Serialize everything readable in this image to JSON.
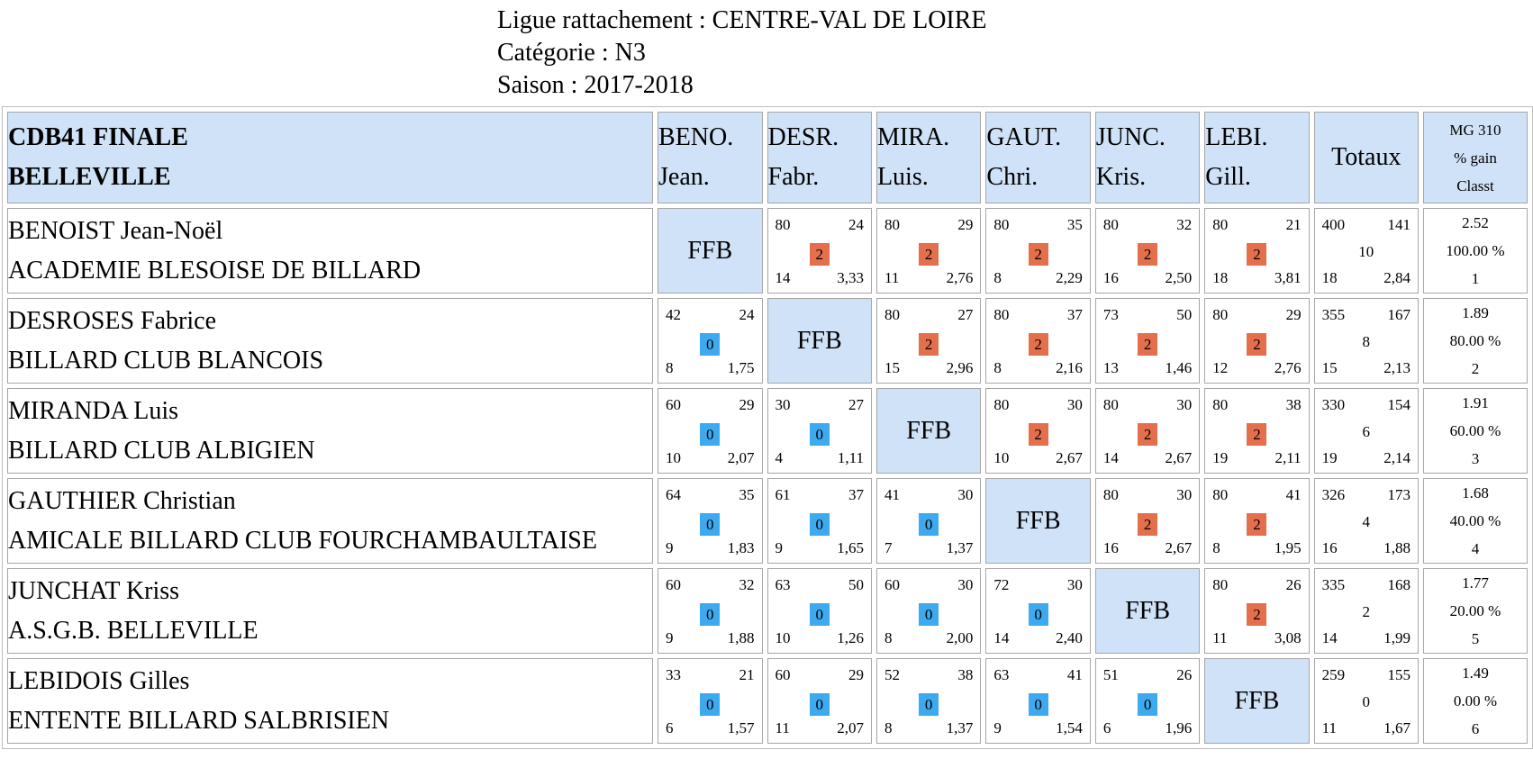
{
  "header": {
    "ligue": "Ligue rattachement : CENTRE-VAL DE LOIRE",
    "categorie": "Catégorie : N3",
    "saison": "Saison : 2017-2018"
  },
  "table": {
    "title_line1": "CDB41 FINALE",
    "title_line2": "BELLEVILLE",
    "columns": [
      {
        "l1": "BENO.",
        "l2": "Jean."
      },
      {
        "l1": "DESR.",
        "l2": "Fabr."
      },
      {
        "l1": "MIRA.",
        "l2": "Luis."
      },
      {
        "l1": "GAUT.",
        "l2": "Chri."
      },
      {
        "l1": "JUNC.",
        "l2": "Kris."
      },
      {
        "l1": "LEBI.",
        "l2": "Gill."
      }
    ],
    "totals_label": "Totaux",
    "mg_label": "MG 310",
    "gain_label": "% gain",
    "classt_label": "Classt",
    "ffb_label": "FFB",
    "rows": [
      {
        "name": "BENOIST Jean-Noël",
        "club": "ACADEMIE BLESOISE DE BILLARD",
        "cells": [
          null,
          {
            "points": "80",
            "reprises": "24",
            "pts": "2",
            "serie": "14",
            "moy": "3,33"
          },
          {
            "points": "80",
            "reprises": "29",
            "pts": "2",
            "serie": "11",
            "moy": "2,76"
          },
          {
            "points": "80",
            "reprises": "35",
            "pts": "2",
            "serie": "8",
            "moy": "2,29"
          },
          {
            "points": "80",
            "reprises": "32",
            "pts": "2",
            "serie": "16",
            "moy": "2,50"
          },
          {
            "points": "80",
            "reprises": "21",
            "pts": "2",
            "serie": "18",
            "moy": "3,81"
          }
        ],
        "totals": {
          "points": "400",
          "reprises": "141",
          "pts": "10",
          "serie": "18",
          "moy": "2,84"
        },
        "stats": {
          "mg": "2.52",
          "gain": "100.00 %",
          "classt": "1"
        }
      },
      {
        "name": "DESROSES Fabrice",
        "club": "BILLARD CLUB BLANCOIS",
        "cells": [
          {
            "points": "42",
            "reprises": "24",
            "pts": "0",
            "serie": "8",
            "moy": "1,75"
          },
          null,
          {
            "points": "80",
            "reprises": "27",
            "pts": "2",
            "serie": "15",
            "moy": "2,96"
          },
          {
            "points": "80",
            "reprises": "37",
            "pts": "2",
            "serie": "8",
            "moy": "2,16"
          },
          {
            "points": "73",
            "reprises": "50",
            "pts": "2",
            "serie": "13",
            "moy": "1,46"
          },
          {
            "points": "80",
            "reprises": "29",
            "pts": "2",
            "serie": "12",
            "moy": "2,76"
          }
        ],
        "totals": {
          "points": "355",
          "reprises": "167",
          "pts": "8",
          "serie": "15",
          "moy": "2,13"
        },
        "stats": {
          "mg": "1.89",
          "gain": "80.00 %",
          "classt": "2"
        }
      },
      {
        "name": "MIRANDA Luis",
        "club": "BILLARD CLUB ALBIGIEN",
        "cells": [
          {
            "points": "60",
            "reprises": "29",
            "pts": "0",
            "serie": "10",
            "moy": "2,07"
          },
          {
            "points": "30",
            "reprises": "27",
            "pts": "0",
            "serie": "4",
            "moy": "1,11"
          },
          null,
          {
            "points": "80",
            "reprises": "30",
            "pts": "2",
            "serie": "10",
            "moy": "2,67"
          },
          {
            "points": "80",
            "reprises": "30",
            "pts": "2",
            "serie": "14",
            "moy": "2,67"
          },
          {
            "points": "80",
            "reprises": "38",
            "pts": "2",
            "serie": "19",
            "moy": "2,11"
          }
        ],
        "totals": {
          "points": "330",
          "reprises": "154",
          "pts": "6",
          "serie": "19",
          "moy": "2,14"
        },
        "stats": {
          "mg": "1.91",
          "gain": "60.00 %",
          "classt": "3"
        }
      },
      {
        "name": "GAUTHIER Christian",
        "club": "AMICALE BILLARD CLUB FOURCHAMBAULTAISE",
        "cells": [
          {
            "points": "64",
            "reprises": "35",
            "pts": "0",
            "serie": "9",
            "moy": "1,83"
          },
          {
            "points": "61",
            "reprises": "37",
            "pts": "0",
            "serie": "9",
            "moy": "1,65"
          },
          {
            "points": "41",
            "reprises": "30",
            "pts": "0",
            "serie": "7",
            "moy": "1,37"
          },
          null,
          {
            "points": "80",
            "reprises": "30",
            "pts": "2",
            "serie": "16",
            "moy": "2,67"
          },
          {
            "points": "80",
            "reprises": "41",
            "pts": "2",
            "serie": "8",
            "moy": "1,95"
          }
        ],
        "totals": {
          "points": "326",
          "reprises": "173",
          "pts": "4",
          "serie": "16",
          "moy": "1,88"
        },
        "stats": {
          "mg": "1.68",
          "gain": "40.00 %",
          "classt": "4"
        }
      },
      {
        "name": "JUNCHAT Kriss",
        "club": "A.S.G.B. BELLEVILLE",
        "cells": [
          {
            "points": "60",
            "reprises": "32",
            "pts": "0",
            "serie": "9",
            "moy": "1,88"
          },
          {
            "points": "63",
            "reprises": "50",
            "pts": "0",
            "serie": "10",
            "moy": "1,26"
          },
          {
            "points": "60",
            "reprises": "30",
            "pts": "0",
            "serie": "8",
            "moy": "2,00"
          },
          {
            "points": "72",
            "reprises": "30",
            "pts": "0",
            "serie": "14",
            "moy": "2,40"
          },
          null,
          {
            "points": "80",
            "reprises": "26",
            "pts": "2",
            "serie": "11",
            "moy": "3,08"
          }
        ],
        "totals": {
          "points": "335",
          "reprises": "168",
          "pts": "2",
          "serie": "14",
          "moy": "1,99"
        },
        "stats": {
          "mg": "1.77",
          "gain": "20.00 %",
          "classt": "5"
        }
      },
      {
        "name": "LEBIDOIS Gilles",
        "club": "ENTENTE BILLARD SALBRISIEN",
        "cells": [
          {
            "points": "33",
            "reprises": "21",
            "pts": "0",
            "serie": "6",
            "moy": "1,57"
          },
          {
            "points": "60",
            "reprises": "29",
            "pts": "0",
            "serie": "11",
            "moy": "2,07"
          },
          {
            "points": "52",
            "reprises": "38",
            "pts": "0",
            "serie": "8",
            "moy": "1,37"
          },
          {
            "points": "63",
            "reprises": "41",
            "pts": "0",
            "serie": "9",
            "moy": "1,54"
          },
          {
            "points": "51",
            "reprises": "26",
            "pts": "0",
            "serie": "6",
            "moy": "1,96"
          },
          null
        ],
        "totals": {
          "points": "259",
          "reprises": "155",
          "pts": "0",
          "serie": "11",
          "moy": "1,67"
        },
        "stats": {
          "mg": "1.49",
          "gain": "0.00 %",
          "classt": "6"
        }
      }
    ],
    "colors": {
      "win_badge": "#e46f4c",
      "loss_badge": "#3da9ee",
      "header_bg": "#cfe2f8"
    }
  }
}
